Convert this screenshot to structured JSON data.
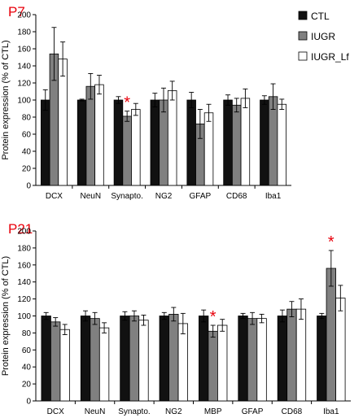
{
  "colors": {
    "CTL": "#111111",
    "IUGR": "#808080",
    "IUGR_Lf": "#ffffff",
    "significance": "#e8000b",
    "panel_title": "#e8000b"
  },
  "legend": {
    "placement": "top-right",
    "entries": [
      "CTL",
      "IUGR",
      "IUGR_Lf"
    ]
  },
  "chart_data": [
    {
      "type": "bar",
      "title": "P7",
      "ylabel": "Protein expression (% of CTL)",
      "xlabel": "",
      "ylim": [
        0,
        200
      ],
      "yticks": [
        "0",
        "20",
        "40",
        "60",
        "80",
        "100",
        "120",
        "140",
        "160",
        "180",
        "200"
      ],
      "grid": false,
      "categories": [
        "DCX",
        "NeuN",
        "Synapto.",
        "NG2",
        "GFAP",
        "CD68",
        "Iba1"
      ],
      "series": [
        {
          "name": "CTL",
          "values": [
            100,
            100,
            100,
            100,
            100,
            100,
            100
          ],
          "errors": [
            12,
            1,
            4,
            8,
            9,
            6,
            5
          ]
        },
        {
          "name": "IUGR",
          "values": [
            154,
            116,
            81,
            100,
            72,
            94,
            104
          ],
          "errors": [
            31,
            15,
            6,
            14,
            17,
            8,
            15
          ]
        },
        {
          "name": "IUGR_Lf",
          "values": [
            148,
            118,
            89,
            111,
            85,
            102,
            95
          ],
          "errors": [
            20,
            11,
            7,
            11,
            10,
            11,
            6
          ]
        }
      ],
      "significance": [
        {
          "category": "Synapto.",
          "series": "IUGR",
          "label": "*"
        }
      ]
    },
    {
      "type": "bar",
      "title": "P21",
      "ylabel": "Protein expression (% of CTL)",
      "xlabel": "",
      "ylim": [
        0,
        200
      ],
      "yticks": [
        "0",
        "20",
        "40",
        "60",
        "80",
        "100",
        "120",
        "140",
        "160",
        "180",
        "200"
      ],
      "grid": false,
      "categories": [
        "DCX",
        "NeuN",
        "Synapto.",
        "NG2",
        "MBP",
        "GFAP",
        "CD68",
        "Iba1"
      ],
      "series": [
        {
          "name": "CTL",
          "values": [
            100,
            100,
            100,
            100,
            100,
            100,
            100,
            100
          ],
          "errors": [
            4,
            6,
            5,
            4,
            7,
            3,
            7,
            3
          ]
        },
        {
          "name": "IUGR",
          "values": [
            93,
            97,
            100,
            102,
            82,
            97,
            108,
            156
          ],
          "errors": [
            5,
            7,
            6,
            8,
            7,
            7,
            9,
            21
          ]
        },
        {
          "name": "IUGR_Lf",
          "values": [
            84,
            86,
            95,
            91,
            89,
            97,
            108,
            121
          ],
          "errors": [
            6,
            6,
            6,
            12,
            7,
            5,
            12,
            15
          ]
        }
      ],
      "significance": [
        {
          "category": "MBP",
          "series": "IUGR",
          "label": "*"
        },
        {
          "category": "Iba1",
          "series": "IUGR",
          "label": "*"
        }
      ]
    }
  ]
}
